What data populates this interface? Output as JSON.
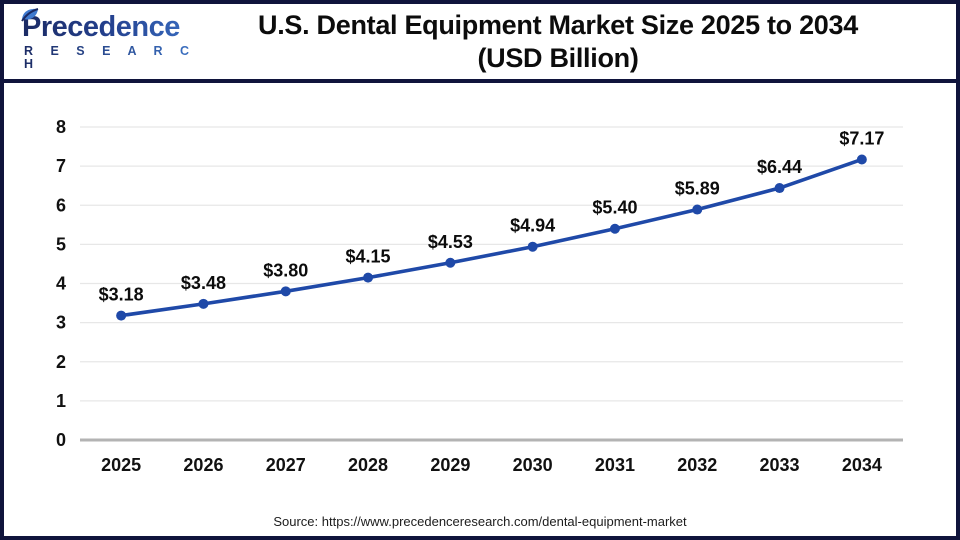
{
  "header": {
    "logo": {
      "brand": "Precedence",
      "subtitle": "R E S E A R C H"
    },
    "title_line1": "U.S. Dental Equipment Market Size 2025 to 2034",
    "title_line2": "(USD Billion)"
  },
  "chart_data": {
    "type": "line",
    "title": "U.S. Dental Equipment Market Size 2025 to 2034 (USD Billion)",
    "categories": [
      "2025",
      "2026",
      "2027",
      "2028",
      "2029",
      "2030",
      "2031",
      "2032",
      "2033",
      "2034"
    ],
    "values": [
      3.18,
      3.48,
      3.8,
      4.15,
      4.53,
      4.94,
      5.4,
      5.89,
      6.44,
      7.17
    ],
    "point_labels": [
      "$3.18",
      "$3.48",
      "$3.80",
      "$4.15",
      "$4.53",
      "$4.94",
      "$5.40",
      "$5.89",
      "$6.44",
      "$7.17"
    ],
    "xlabel": "",
    "ylabel": "",
    "ylim": [
      0,
      8
    ],
    "yticks": [
      0,
      1,
      2,
      3,
      4,
      5,
      6,
      7,
      8
    ],
    "grid": true,
    "legend": false,
    "line_color": "#1f49a8",
    "marker_color": "#1f49a8",
    "grid_color": "#e7e7e7",
    "axis_line_color": "#b3b3b3",
    "tick_label_color": "#111111"
  },
  "footer": {
    "source": "Source: https://www.precedenceresearch.com/dental-equipment-market"
  },
  "colors": {
    "frame_border": "#10143c",
    "logo_dark": "#1b2a63",
    "logo_light": "#3f7ad0",
    "title_color": "#0c0c0c"
  }
}
